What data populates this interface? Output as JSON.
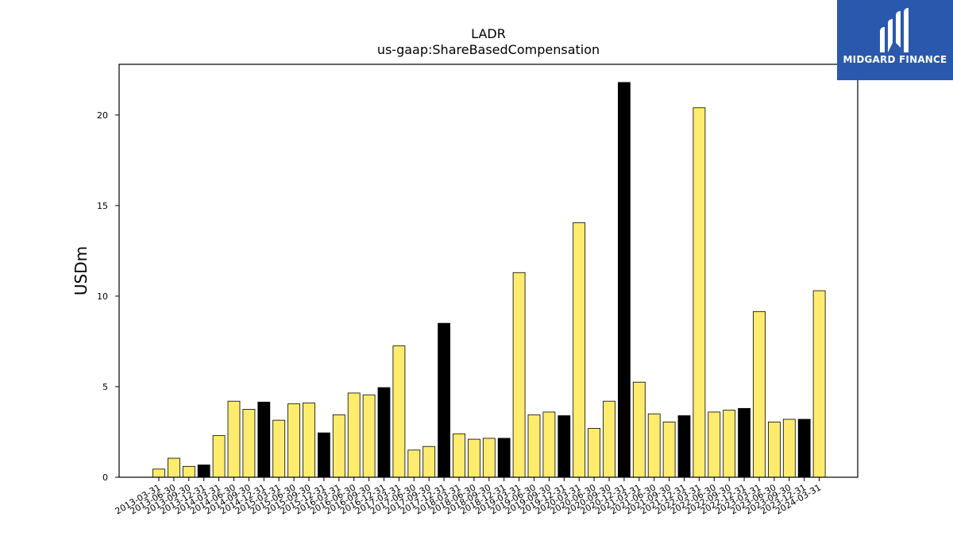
{
  "logo": {
    "text": "MIDGARD FINANCE",
    "background": "#2a58ad"
  },
  "chart_data": {
    "type": "bar",
    "title": "LADR",
    "subtitle": "us-gaap:ShareBasedCompensation",
    "ylabel": "USDm",
    "xlabel": "",
    "ylim": [
      0,
      22.8
    ],
    "yticks": [
      0,
      5,
      10,
      15,
      20
    ],
    "grid": false,
    "colors": {
      "quarter": "#ffec6e",
      "annual": "#000000",
      "edge": "#000000"
    },
    "categories": [
      "2013-03-31",
      "2013-06-30",
      "2013-09-30",
      "2013-12-31",
      "2014-03-31",
      "2014-06-30",
      "2014-09-30",
      "2014-12-31",
      "2015-03-31",
      "2015-06-30",
      "2015-09-30",
      "2015-12-31",
      "2016-03-31",
      "2016-06-30",
      "2016-09-30",
      "2016-12-31",
      "2017-03-31",
      "2017-06-30",
      "2017-09-30",
      "2017-12-31",
      "2018-03-31",
      "2018-06-30",
      "2018-09-30",
      "2018-12-31",
      "2019-03-31",
      "2019-06-30",
      "2019-09-30",
      "2019-12-31",
      "2020-03-31",
      "2020-06-30",
      "2020-09-30",
      "2020-12-31",
      "2021-03-31",
      "2021-06-30",
      "2021-09-30",
      "2021-12-31",
      "2022-03-31",
      "2022-06-30",
      "2022-09-30",
      "2022-12-31",
      "2023-03-31",
      "2023-06-30",
      "2023-09-30",
      "2023-12-31",
      "2024-03-31"
    ],
    "values": [
      0.45,
      1.05,
      0.6,
      0.68,
      2.3,
      4.2,
      3.75,
      4.15,
      3.15,
      4.05,
      4.1,
      2.45,
      3.45,
      4.65,
      4.55,
      4.95,
      7.25,
      1.5,
      1.7,
      8.5,
      2.4,
      2.1,
      2.15,
      2.15,
      11.3,
      3.45,
      3.6,
      3.4,
      14.05,
      2.7,
      4.2,
      21.8,
      5.25,
      3.5,
      3.05,
      3.4,
      20.4,
      3.6,
      3.7,
      3.8,
      9.15,
      3.05,
      3.2,
      3.2,
      10.3
    ],
    "annual_flags": [
      false,
      false,
      false,
      true,
      false,
      false,
      false,
      true,
      false,
      false,
      false,
      true,
      false,
      false,
      false,
      true,
      false,
      false,
      false,
      true,
      false,
      false,
      false,
      true,
      false,
      false,
      false,
      true,
      false,
      false,
      false,
      true,
      false,
      false,
      false,
      true,
      false,
      false,
      false,
      true,
      false,
      false,
      false,
      true,
      false
    ]
  }
}
